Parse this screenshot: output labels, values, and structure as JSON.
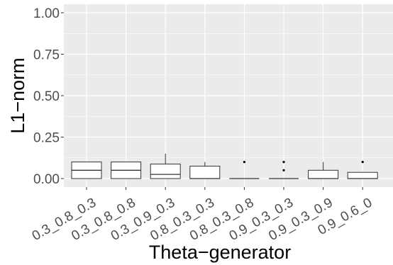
{
  "chart_data": {
    "type": "boxplot",
    "xlabel": "Theta−generator",
    "ylabel": "L1−norm",
    "ylim": [
      0,
      1
    ],
    "yticks": [
      0.0,
      0.25,
      0.5,
      0.75,
      1.0
    ],
    "ytick_labels": [
      "0.00",
      "0.25",
      "0.50",
      "0.75",
      "1.00"
    ],
    "grid": true,
    "background": "#ebebeb",
    "categories": [
      "0.3_0.8_0.3",
      "0.3_0.8_0.8",
      "0.3_0.9_0.3",
      "0.8_0.3_0.3",
      "0.8_0.3_0.8",
      "0.9_0.3_0.3",
      "0.9_0.3_0.9",
      "0.9_0.6_0"
    ],
    "boxes": [
      {
        "category": "0.3_0.8_0.3",
        "whisker_low": 0.0,
        "q1": 0.0,
        "median": 0.05,
        "q3": 0.1,
        "whisker_high": 0.1,
        "outliers": []
      },
      {
        "category": "0.3_0.8_0.8",
        "whisker_low": 0.0,
        "q1": 0.0,
        "median": 0.05,
        "q3": 0.1,
        "whisker_high": 0.1,
        "outliers": []
      },
      {
        "category": "0.3_0.9_0.3",
        "whisker_low": 0.0,
        "q1": 0.0,
        "median": 0.025,
        "q3": 0.0875,
        "whisker_high": 0.15,
        "outliers": []
      },
      {
        "category": "0.8_0.3_0.3",
        "whisker_low": 0.0,
        "q1": 0.0,
        "median": 0.0,
        "q3": 0.075,
        "whisker_high": 0.1,
        "outliers": []
      },
      {
        "category": "0.8_0.3_0.8",
        "whisker_low": 0.0,
        "q1": 0.0,
        "median": 0.0,
        "q3": 0.0,
        "whisker_high": 0.0,
        "outliers": [
          0.1
        ]
      },
      {
        "category": "0.9_0.3_0.3",
        "whisker_low": 0.0,
        "q1": 0.0,
        "median": 0.0,
        "q3": 0.0,
        "whisker_high": 0.0,
        "outliers": [
          0.05,
          0.1
        ]
      },
      {
        "category": "0.9_0.3_0.9",
        "whisker_low": 0.0,
        "q1": 0.0,
        "median": 0.0,
        "q3": 0.05,
        "whisker_high": 0.1,
        "outliers": []
      },
      {
        "category": "0.9_0.6_0",
        "whisker_low": 0.0,
        "q1": 0.0,
        "median": 0.0,
        "q3": 0.0375,
        "whisker_high": 0.04,
        "outliers": [
          0.1
        ]
      }
    ]
  }
}
